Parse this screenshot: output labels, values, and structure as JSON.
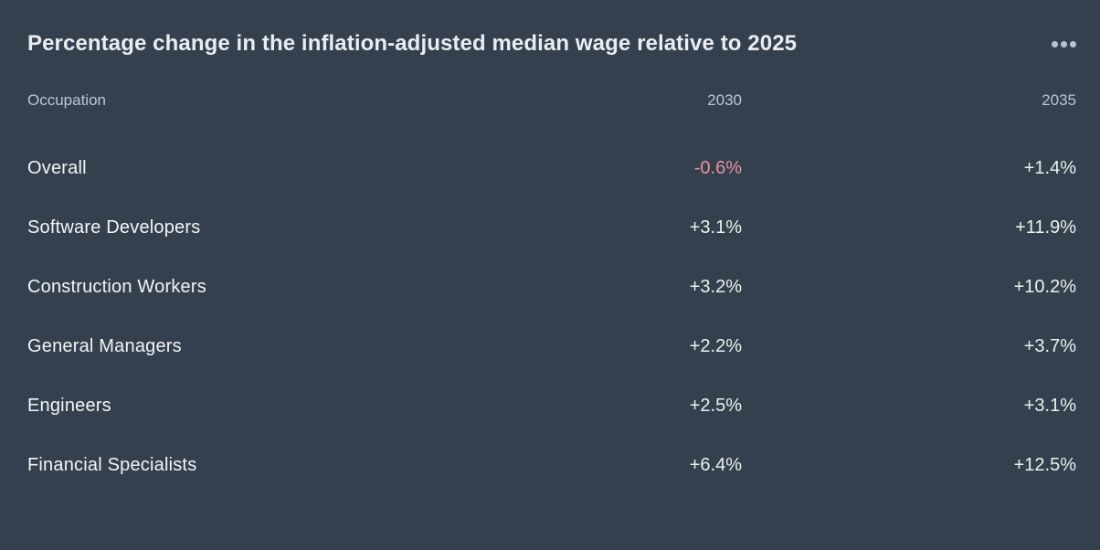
{
  "card": {
    "title": "Percentage change in the inflation-adjusted median wage relative to 2025",
    "menu_icon": "ellipsis-horizontal-icon"
  },
  "table": {
    "headers": {
      "occupation": "Occupation",
      "col2030": "2030",
      "col2035": "2035"
    },
    "rows": [
      {
        "occupation": "Overall",
        "v2030": "-0.6%",
        "v2035": "+1.4%"
      },
      {
        "occupation": "Software Developers",
        "v2030": "+3.1%",
        "v2035": "+11.9%"
      },
      {
        "occupation": "Construction Workers",
        "v2030": "+3.2%",
        "v2035": "+10.2%"
      },
      {
        "occupation": "General Managers",
        "v2030": "+2.2%",
        "v2035": "+3.7%"
      },
      {
        "occupation": "Engineers",
        "v2030": "+2.5%",
        "v2035": "+3.1%"
      },
      {
        "occupation": "Financial Specialists",
        "v2030": "+6.4%",
        "v2035": "+12.5%"
      }
    ]
  },
  "colors": {
    "background": "#35404f",
    "title": "#e9edf2",
    "header_text": "#bcc6d2",
    "row_label": "#f3f5f7",
    "positive_value": "#e9f2ed",
    "negative_value": "#e593a0",
    "menu_dots": "#b5c4d8"
  },
  "chart_data": {
    "type": "table",
    "title": "Percentage change in the inflation-adjusted median wage relative to 2025",
    "columns": [
      "Occupation",
      "2030",
      "2035"
    ],
    "rows": [
      [
        "Overall",
        "-0.6%",
        "+1.4%"
      ],
      [
        "Software Developers",
        "+3.1%",
        "+11.9%"
      ],
      [
        "Construction Workers",
        "+3.2%",
        "+10.2%"
      ],
      [
        "General Managers",
        "+2.2%",
        "+3.7%"
      ],
      [
        "Engineers",
        "+2.5%",
        "+3.1%"
      ],
      [
        "Financial Specialists",
        "+6.4%",
        "+12.5%"
      ]
    ],
    "series": [
      {
        "name": "2030",
        "values": [
          -0.6,
          3.1,
          3.2,
          2.2,
          2.5,
          6.4
        ]
      },
      {
        "name": "2035",
        "values": [
          1.4,
          11.9,
          10.2,
          3.7,
          3.1,
          12.5
        ]
      }
    ],
    "categories": [
      "Overall",
      "Software Developers",
      "Construction Workers",
      "General Managers",
      "Engineers",
      "Financial Specialists"
    ],
    "value_unit": "%",
    "baseline_year": "2025",
    "negative_highlight_color": "#e593a0"
  }
}
